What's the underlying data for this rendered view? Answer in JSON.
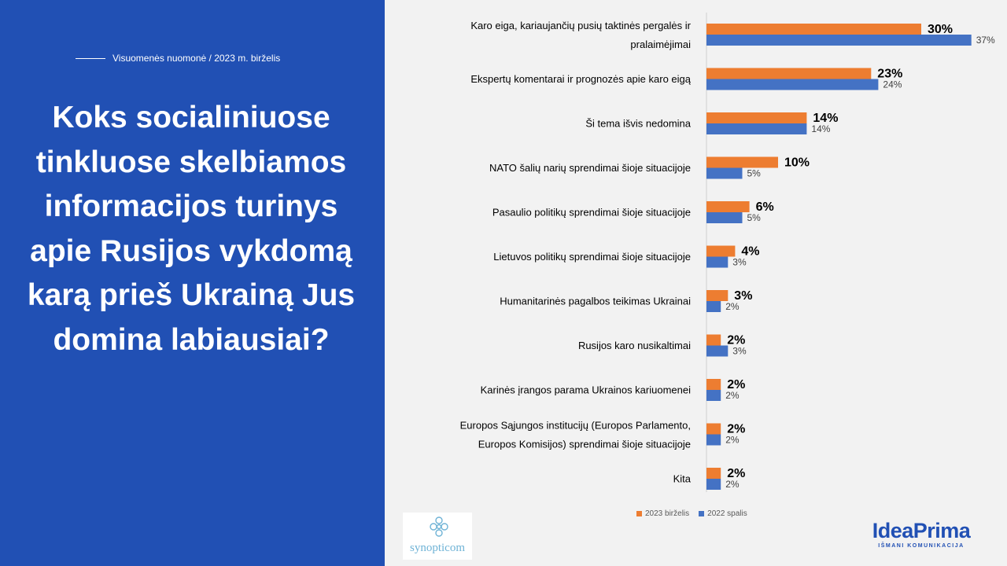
{
  "header": {
    "subtitle": "Visuomenės nuomonė / 2023 m. birželis",
    "title": "Koks socialiniuose tinkluose skelbiamos informacijos turinys apie Rusijos vykdomą karą prieš Ukrainą Jus domina labiausiai?"
  },
  "chart_data": {
    "type": "bar",
    "orientation": "horizontal",
    "categories": [
      [
        "Karo eiga, kariaujančių pusių taktinės pergalės ir",
        "pralaimėjimai"
      ],
      [
        "Ekspertų komentarai ir prognozės apie karo eigą"
      ],
      [
        "Ši tema išvis nedomina"
      ],
      [
        "NATO šalių narių sprendimai šioje situacijoje"
      ],
      [
        "Pasaulio politikų sprendimai šioje situacijoje"
      ],
      [
        "Lietuvos politikų sprendimai šioje situacijoje"
      ],
      [
        "Humanitarinės pagalbos teikimas Ukrainai"
      ],
      [
        "Rusijos karo nusikaltimai"
      ],
      [
        "Karinės įrangos parama Ukrainos kariuomenei"
      ],
      [
        "Europos Sąjungos institucijų (Europos Parlamento,",
        "Europos Komisijos) sprendimai šioje situacijoje"
      ],
      [
        "Kita"
      ]
    ],
    "series": [
      {
        "name": "2023 birželis",
        "color": "#ed7d31",
        "values": [
          30,
          23,
          14,
          10,
          6,
          4,
          3,
          2,
          2,
          2,
          2
        ],
        "labels": [
          "30%",
          "23%",
          "14%",
          "10%",
          "6%",
          "4%",
          "3%",
          "2%",
          "2%",
          "2%",
          "2%"
        ]
      },
      {
        "name": "2022 spalis",
        "color": "#4472c4",
        "values": [
          37,
          24,
          14,
          5,
          5,
          3,
          2,
          3,
          2,
          2,
          2
        ],
        "labels": [
          "37%",
          "24%",
          "14%",
          "5%",
          "5%",
          "3%",
          "2%",
          "3%",
          "2%",
          "2%",
          "2%"
        ]
      }
    ],
    "xlim": [
      0,
      40
    ],
    "grid": false,
    "legend_position": "bottom"
  },
  "logos": {
    "synopticom": "synopticom",
    "ideaprima": "IdeaPrima",
    "ideaprima_tagline": "IŠMANI KOMUNIKACIJA"
  },
  "colors": {
    "panel": "#2150b4",
    "orange": "#ed7d31",
    "blue": "#4472c4"
  }
}
